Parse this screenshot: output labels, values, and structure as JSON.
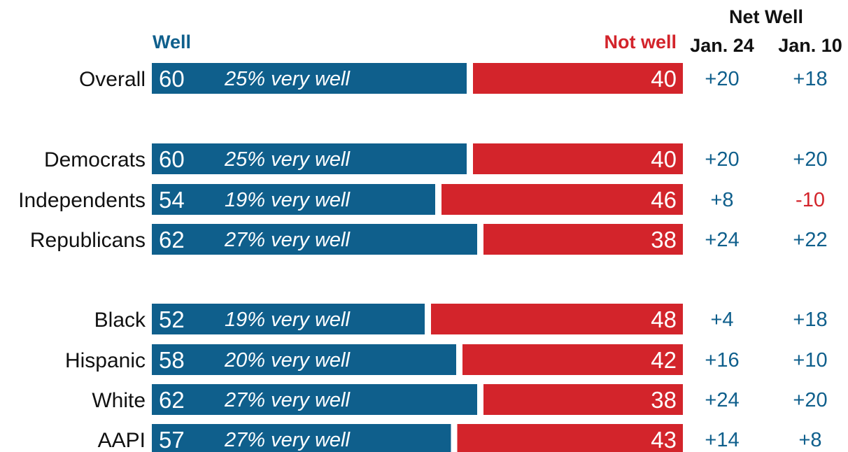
{
  "colors": {
    "well": "#0f5f8c",
    "not_well": "#d3242b",
    "label": "#111111"
  },
  "headers": {
    "well": "Well",
    "not_well": "Not well",
    "net_well": "Net Well",
    "jan24": "Jan. 24",
    "jan10": "Jan. 10"
  },
  "chart_data": {
    "type": "bar",
    "orientation": "horizontal",
    "stacked": true,
    "categories": [
      "Overall",
      "Democrats",
      "Independents",
      "Republicans",
      "Black",
      "Hispanic",
      "White",
      "AAPI"
    ],
    "series": [
      {
        "name": "Well",
        "values": [
          60,
          60,
          54,
          62,
          52,
          58,
          62,
          57
        ],
        "color": "#0f5f8c"
      },
      {
        "name": "Not well",
        "values": [
          40,
          40,
          46,
          38,
          48,
          42,
          38,
          43
        ],
        "color": "#d3242b"
      }
    ],
    "very_well_labels": [
      "25% very well",
      "25% very well",
      "19% very well",
      "27% very well",
      "19% very well",
      "20% very well",
      "27% very well",
      "27% very well"
    ],
    "net_well": {
      "jan24": [
        "+20",
        "+20",
        "+8",
        "+24",
        "+4",
        "+16",
        "+24",
        "+14"
      ],
      "jan10": [
        "+18",
        "+20",
        "-10",
        "+22",
        "+18",
        "+10",
        "+20",
        "+8"
      ]
    },
    "xlim": [
      0,
      100
    ],
    "grid": false,
    "legend": "top"
  }
}
